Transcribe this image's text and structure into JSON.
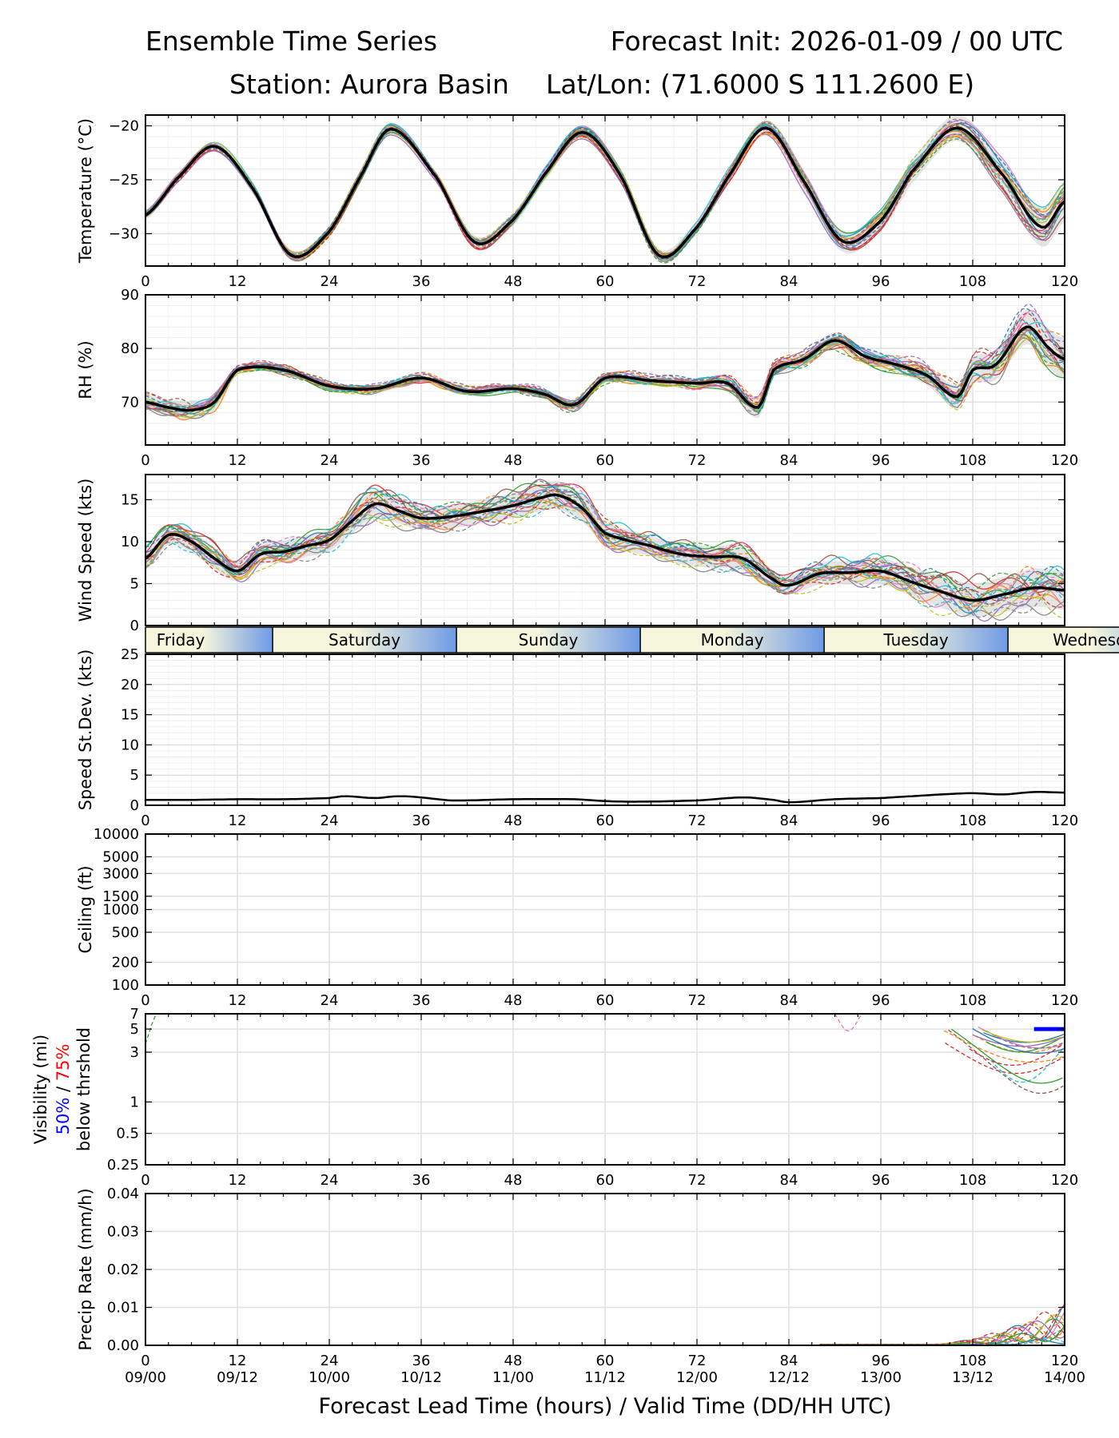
{
  "header": {
    "title_left": "Ensemble Time Series",
    "title_right": "Forecast Init: 2026-01-09 / 00 UTC",
    "station": "Station: Aurora Basin",
    "latlon": "Lat/Lon: (71.6000 S 111.2600 E)"
  },
  "x_axis": {
    "ticks": [
      0,
      12,
      24,
      36,
      48,
      60,
      72,
      84,
      96,
      108,
      120
    ],
    "valid_labels": [
      "09/00",
      "09/12",
      "10/00",
      "10/12",
      "11/00",
      "11/12",
      "12/00",
      "12/12",
      "13/00",
      "13/12",
      "14/00"
    ],
    "xlabel": "Forecast Lead Time (hours) / Valid Time (DD/HH UTC)",
    "range": [
      0,
      120
    ]
  },
  "day_strip": {
    "days": [
      {
        "label": "Friday",
        "start": 0,
        "end": 16.6
      },
      {
        "label": "Saturday",
        "start": 16.6,
        "end": 40.6
      },
      {
        "label": "Sunday",
        "start": 40.6,
        "end": 64.6
      },
      {
        "label": "Monday",
        "start": 64.6,
        "end": 88.6
      },
      {
        "label": "Tuesday",
        "start": 88.6,
        "end": 112.6
      },
      {
        "label": "Wednesday",
        "start": 112.6,
        "end": 136.6
      }
    ],
    "colors": {
      "day": "#f6f6dc",
      "night": "#6f9ae6"
    }
  },
  "colors": {
    "mean": "#000000",
    "spread": "#cfcfcf",
    "members": [
      "#1f77b4",
      "#ff7f0e",
      "#2ca02c",
      "#d62728",
      "#9467bd",
      "#8c564b",
      "#e377c2",
      "#7f7f7f",
      "#bcbd22",
      "#17becf"
    ],
    "vis50": "#0000ff",
    "vis75": "#ff0000"
  },
  "chart_data": [
    {
      "type": "line",
      "name": "temperature",
      "ylabel": "Temperature (°C)",
      "ylim": [
        -33,
        -19
      ],
      "yticks": [
        -30,
        -25,
        -20
      ],
      "series": [
        {
          "name": "ensemble mean",
          "x": [
            0,
            4,
            9,
            14,
            19,
            24,
            28,
            32,
            38,
            43,
            48,
            52,
            57,
            62,
            67,
            72,
            76,
            81,
            86,
            91,
            96,
            100,
            106,
            112,
            117,
            120
          ],
          "values": [
            -28.3,
            -25.0,
            -21.9,
            -25.8,
            -32.0,
            -29.8,
            -24.8,
            -20.3,
            -24.8,
            -30.8,
            -28.7,
            -24.6,
            -20.6,
            -24.6,
            -32.0,
            -29.4,
            -24.8,
            -20.2,
            -25.2,
            -30.7,
            -28.8,
            -24.3,
            -20.2,
            -24.6,
            -29.4,
            -27.0
          ]
        }
      ],
      "spread_width": [
        0.4,
        0.4,
        0.4,
        0.5,
        0.5,
        0.5,
        0.5,
        0.5,
        0.5,
        0.6,
        0.6,
        0.6,
        0.6,
        0.6,
        0.6,
        0.6,
        0.7,
        0.7,
        0.9,
        1.0,
        1.0,
        1.1,
        1.2,
        1.5,
        1.8,
        1.9
      ],
      "grid": "minor"
    },
    {
      "type": "line",
      "name": "relative_humidity",
      "ylabel": "RH (%)",
      "ylim": [
        62,
        90
      ],
      "yticks": [
        70,
        80,
        90
      ],
      "series": [
        {
          "name": "ensemble mean",
          "x": [
            0,
            3,
            6,
            9,
            12,
            18,
            24,
            30,
            36,
            42,
            48,
            52,
            56,
            60,
            66,
            72,
            76,
            80,
            82,
            86,
            90,
            94,
            98,
            102,
            106,
            108,
            111,
            115,
            118,
            120
          ],
          "values": [
            70,
            69,
            68.5,
            70,
            76,
            76,
            73,
            72.5,
            74.5,
            72,
            72.5,
            71.5,
            69.5,
            74.5,
            74,
            73.5,
            73.5,
            69,
            76,
            78,
            81.5,
            78.5,
            77,
            75,
            71,
            76,
            77,
            84,
            80,
            78
          ]
        }
      ],
      "spread_width": [
        1.2,
        1.5,
        1.8,
        1.5,
        0.8,
        0.8,
        0.7,
        0.8,
        0.9,
        0.8,
        0.8,
        0.9,
        1.0,
        0.9,
        0.9,
        1.0,
        1.4,
        2.0,
        1.3,
        1.2,
        1.5,
        1.4,
        1.5,
        1.8,
        2.2,
        2.4,
        2.8,
        3.2,
        3.6,
        3.8
      ],
      "grid": "minor"
    },
    {
      "type": "line",
      "name": "wind_speed",
      "ylabel": "Wind Speed (kts)",
      "ylim": [
        0,
        18
      ],
      "yticks": [
        0,
        5,
        10,
        15
      ],
      "series": [
        {
          "name": "ensemble mean",
          "x": [
            0,
            3,
            6,
            9,
            12,
            15,
            18,
            21,
            24,
            27,
            30,
            33,
            36,
            40,
            44,
            48,
            52,
            54,
            57,
            60,
            66,
            70,
            74,
            78,
            82,
            84,
            88,
            92,
            96,
            100,
            104,
            108,
            112,
            116,
            120
          ],
          "values": [
            8,
            10.8,
            10.0,
            8.0,
            6.5,
            8.5,
            8.8,
            9.5,
            10.2,
            12.5,
            14.5,
            13.7,
            12.8,
            13.0,
            13.6,
            14.3,
            15.3,
            15.5,
            14.0,
            11.0,
            9.5,
            8.5,
            8.2,
            8.0,
            5.5,
            4.8,
            6.2,
            6.3,
            6.5,
            5.2,
            4.0,
            3.0,
            3.7,
            4.5,
            4.2
          ]
        }
      ],
      "spread_width": [
        1.0,
        1.2,
        1.3,
        1.3,
        1.2,
        1.3,
        1.3,
        1.3,
        1.3,
        1.5,
        1.6,
        1.5,
        1.4,
        1.4,
        1.4,
        1.5,
        1.6,
        1.7,
        1.6,
        1.4,
        1.2,
        1.2,
        1.3,
        1.4,
        1.1,
        1.1,
        1.3,
        1.4,
        1.5,
        1.7,
        1.9,
        2.0,
        2.1,
        2.3,
        2.3
      ],
      "grid": "minor"
    },
    {
      "type": "line",
      "name": "speed_stdev",
      "ylabel": "Speed St.Dev. (kts)",
      "ylim": [
        0,
        25
      ],
      "yticks": [
        0,
        5,
        10,
        15,
        20,
        25
      ],
      "series": [
        {
          "name": "st.dev.",
          "x": [
            0,
            6,
            12,
            18,
            24,
            26,
            30,
            33,
            36,
            40,
            48,
            56,
            60,
            64,
            72,
            78,
            82,
            84,
            90,
            96,
            100,
            104,
            108,
            112,
            116,
            120
          ],
          "values": [
            0.9,
            0.9,
            1.0,
            1.0,
            1.2,
            1.5,
            1.2,
            1.5,
            1.3,
            0.8,
            1.0,
            1.0,
            0.7,
            0.6,
            0.8,
            1.3,
            0.9,
            0.5,
            1.0,
            1.2,
            1.5,
            1.8,
            2.0,
            1.8,
            2.2,
            2.1
          ]
        }
      ],
      "grid": "minor"
    },
    {
      "type": "line",
      "name": "ceiling",
      "ylabel": "Ceiling (ft)",
      "yscale": "log",
      "ylim": [
        100,
        10000
      ],
      "yticks": [
        100,
        200,
        500,
        1000,
        1500,
        3000,
        5000,
        10000
      ],
      "series": [],
      "grid": "major"
    },
    {
      "type": "line",
      "name": "visibility",
      "ylabel": "Visibility (mi)",
      "ylabel2_a": "50%",
      "ylabel2_sep": " / ",
      "ylabel2_b": "75%",
      "ylabel3": "below thrshold",
      "yscale": "log",
      "ylim": [
        0.25,
        7
      ],
      "yticks": [
        0.25,
        0.5,
        1,
        3,
        5,
        7
      ],
      "series": [
        {
          "name": "50% below threshold",
          "x": [
            116,
            120
          ],
          "values": [
            5,
            5
          ]
        }
      ],
      "grid": "major"
    },
    {
      "type": "line",
      "name": "precip_rate",
      "ylabel": "Precip Rate (mm/h)",
      "ylim": [
        0,
        0.04
      ],
      "yticks": [
        0.0,
        0.01,
        0.02,
        0.03,
        0.04
      ],
      "ytick_labels": [
        "0.00",
        "0.01",
        "0.02",
        "0.03",
        "0.04"
      ],
      "series": [],
      "grid": "major"
    }
  ]
}
